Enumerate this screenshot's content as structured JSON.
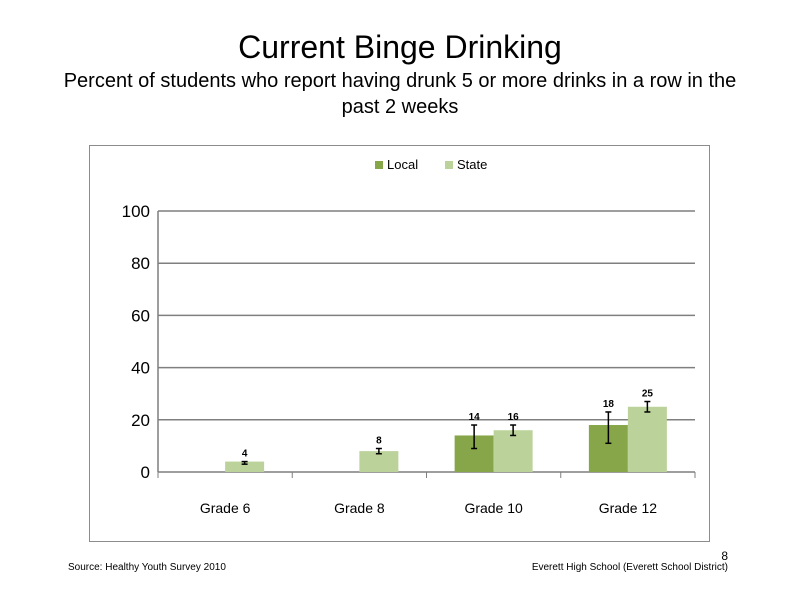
{
  "slide": {
    "title": "Current Binge Drinking",
    "subtitle": "Percent of students who report having drunk 5 or more drinks in a row in the past 2 weeks",
    "source": "Source: Healthy Youth Survey 2010",
    "school": "Everett High School (Everett School District)",
    "page_number": "8"
  },
  "colors": {
    "local": "#86A649",
    "state": "#BBD39A",
    "grid": "#7F7F7F",
    "error_bar": "#000000"
  },
  "chart_data": {
    "type": "bar",
    "categories": [
      "Grade 6",
      "Grade 8",
      "Grade 10",
      "Grade 12"
    ],
    "series": [
      {
        "name": "Local",
        "values": [
          null,
          null,
          14,
          18
        ],
        "error_low": [
          null,
          null,
          9,
          11
        ],
        "error_high": [
          null,
          null,
          18,
          23
        ]
      },
      {
        "name": "State",
        "values": [
          4,
          8,
          16,
          25
        ],
        "error_low": [
          3,
          7,
          14,
          23
        ],
        "error_high": [
          4,
          9,
          18,
          27
        ]
      }
    ],
    "data_labels": {
      "Local": [
        "",
        "",
        "14",
        "18"
      ],
      "State": [
        "4",
        "8",
        "16",
        "25"
      ]
    },
    "ylim": [
      0,
      100
    ],
    "yticks": [
      0,
      20,
      40,
      60,
      80,
      100
    ],
    "grid": true,
    "legend": "top-center"
  }
}
